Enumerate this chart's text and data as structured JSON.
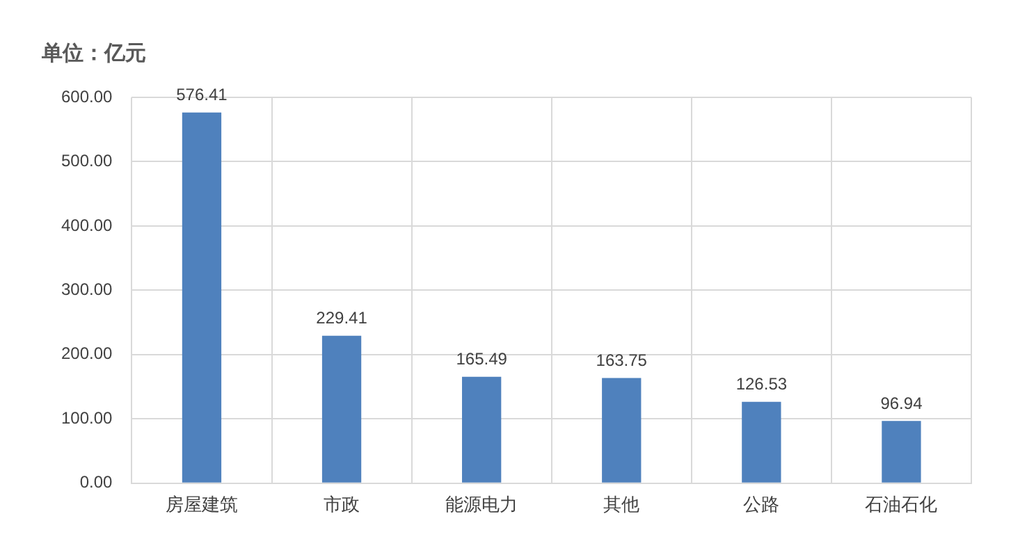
{
  "chart_data": {
    "type": "bar",
    "title": "单位：亿元",
    "categories": [
      "房屋建筑",
      "市政",
      "能源电力",
      "其他",
      "公路",
      "石油石化"
    ],
    "values": [
      576.41,
      229.41,
      165.49,
      163.75,
      126.53,
      96.94
    ],
    "color": "#4f81bd",
    "ylim": [
      0,
      600
    ],
    "yticks": [
      {
        "value": 0,
        "label": "0.00"
      },
      {
        "value": 100,
        "label": "100.00"
      },
      {
        "value": 200,
        "label": "200.00"
      },
      {
        "value": 300,
        "label": "300.00"
      },
      {
        "value": 400,
        "label": "400.00"
      },
      {
        "value": 500,
        "label": "500.00"
      },
      {
        "value": 600,
        "label": "600.00"
      }
    ],
    "data_labels": true,
    "grid": true,
    "legend": false
  }
}
